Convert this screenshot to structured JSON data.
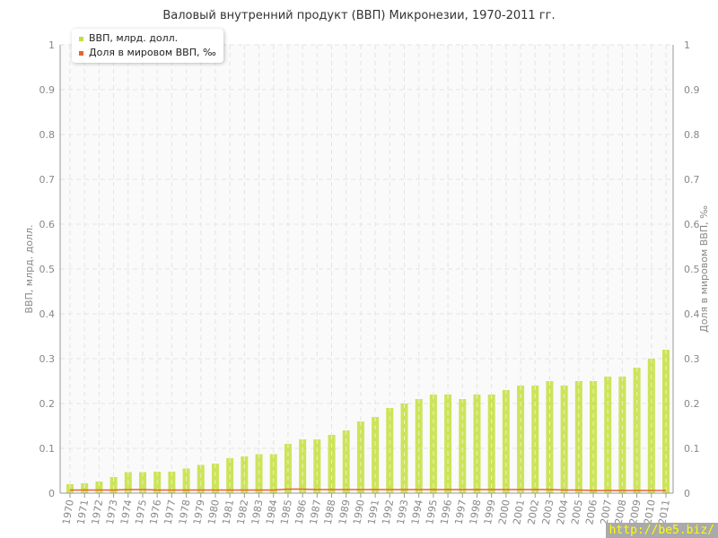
{
  "chart_data": {
    "type": "bar",
    "title": "Валовый внутренний продукт (ВВП) Микронезии, 1970-2011 гг.",
    "ylabel": "ВВП, млрд. долл.",
    "y2label": "Доля в мировом ВВП, ‰",
    "ylim": [
      0,
      1
    ],
    "y2lim": [
      0,
      1
    ],
    "yticks": [
      "0",
      "0.1",
      "0.2",
      "0.3",
      "0.4",
      "0.5",
      "0.6",
      "0.7",
      "0.8",
      "0.9",
      "1"
    ],
    "grid": true,
    "legend_position": "top-left",
    "categories": [
      "1970",
      "1971",
      "1972",
      "1973",
      "1974",
      "1975",
      "1976",
      "1977",
      "1978",
      "1979",
      "1980",
      "1981",
      "1982",
      "1983",
      "1984",
      "1985",
      "1986",
      "1987",
      "1988",
      "1989",
      "1990",
      "1991",
      "1992",
      "1993",
      "1994",
      "1995",
      "1996",
      "1997",
      "1998",
      "1999",
      "2000",
      "2001",
      "2002",
      "2003",
      "2004",
      "2005",
      "2006",
      "2007",
      "2008",
      "2009",
      "2010",
      "2011"
    ],
    "series": [
      {
        "name": "ВВП, млрд. долл.",
        "type": "bar",
        "color": "#c3df3c",
        "values": [
          0.02,
          0.022,
          0.026,
          0.036,
          0.047,
          0.047,
          0.048,
          0.048,
          0.055,
          0.063,
          0.066,
          0.078,
          0.082,
          0.087,
          0.087,
          0.11,
          0.12,
          0.12,
          0.13,
          0.14,
          0.16,
          0.17,
          0.19,
          0.2,
          0.21,
          0.22,
          0.22,
          0.21,
          0.22,
          0.22,
          0.23,
          0.24,
          0.24,
          0.25,
          0.24,
          0.25,
          0.25,
          0.26,
          0.26,
          0.28,
          0.3,
          0.32
        ]
      },
      {
        "name": "Доля в мировом ВВП, ‰",
        "type": "line",
        "color": "#e8642c",
        "values": [
          0.007,
          0.007,
          0.007,
          0.007,
          0.008,
          0.008,
          0.007,
          0.007,
          0.007,
          0.007,
          0.007,
          0.007,
          0.007,
          0.007,
          0.007,
          0.009,
          0.009,
          0.008,
          0.008,
          0.008,
          0.008,
          0.008,
          0.008,
          0.008,
          0.008,
          0.008,
          0.008,
          0.008,
          0.008,
          0.008,
          0.008,
          0.008,
          0.008,
          0.008,
          0.007,
          0.007,
          0.006,
          0.006,
          0.006,
          0.006,
          0.006,
          0.006
        ]
      }
    ]
  },
  "watermark": "http://be5.biz/"
}
